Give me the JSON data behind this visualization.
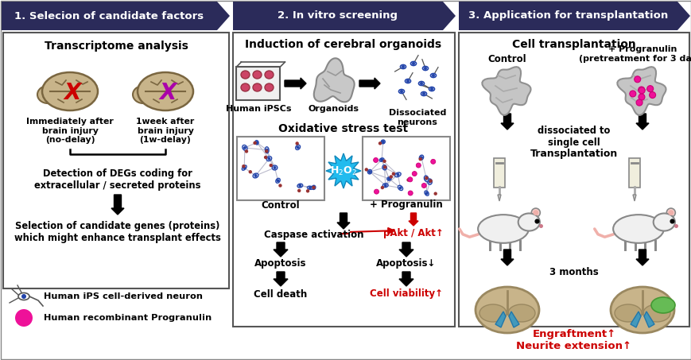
{
  "header_color": "#2b2b5a",
  "header_text_color": "#ffffff",
  "red_color": "#cc0000",
  "section1_title": "1. Selecion of candidate factors",
  "section2_title": "2. In vitro screening",
  "section3_title": "3. Application for transplantation",
  "panel1_title": "Transcriptome analysis",
  "panel2_title": "Induction of cerebral organoids",
  "panel3_title": "Cell transplantation",
  "brain_color": "#c8b48a",
  "brain_edge": "#7a6640",
  "neuron_blue": "#2244aa",
  "neuron_red": "#993333",
  "pink": "#ee1199",
  "pink_edge": "#cc0077",
  "gray_sphere": "#c0c0c0",
  "gray_sphere_edge": "#909090",
  "burst_color": "#00aaee",
  "green_graft": "#66bb66",
  "teal_ventricle": "#3399aa",
  "figsize": [
    8.7,
    4.53
  ],
  "dpi": 100
}
